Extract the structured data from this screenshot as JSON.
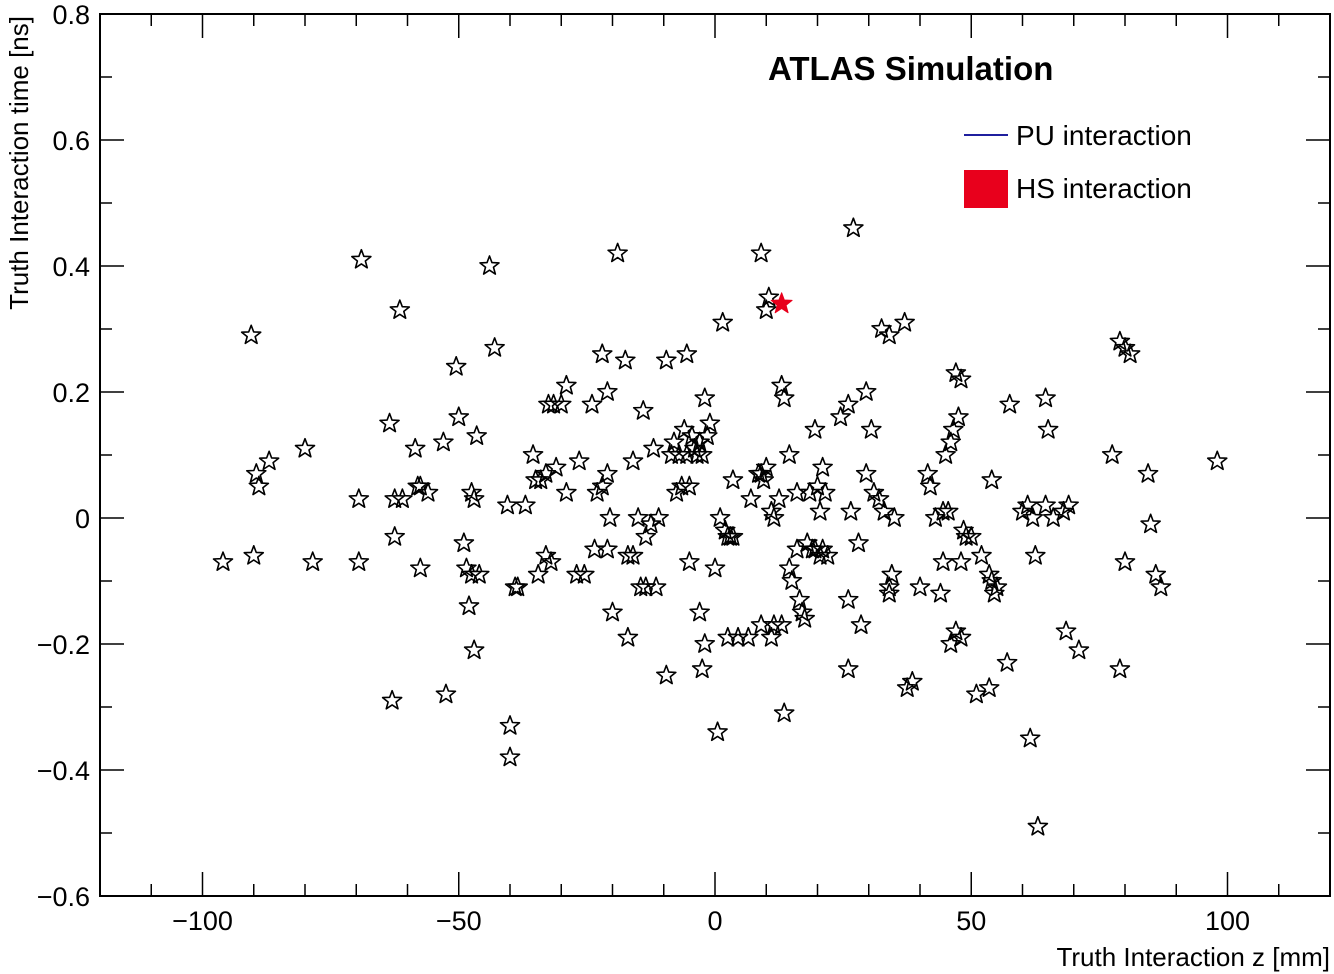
{
  "chart_data": {
    "type": "scatter",
    "title": "ATLAS Simulation",
    "xlabel": "Truth Interaction z [mm]",
    "ylabel": "Truth Interaction time [ns]",
    "xlim": [
      -120,
      120
    ],
    "ylim": [
      -0.6,
      0.8
    ],
    "x_ticks": [
      -100,
      -50,
      0,
      50,
      100
    ],
    "x_tick_labels": [
      "−100",
      "−50",
      "0",
      "50",
      "100"
    ],
    "y_ticks": [
      -0.6,
      -0.4,
      -0.2,
      0,
      0.2,
      0.4,
      0.6,
      0.8
    ],
    "y_tick_labels": [
      "−0.6",
      "−0.4",
      "−0.2",
      "0",
      "0.2",
      "0.4",
      "0.6",
      "0.8"
    ],
    "grid": false,
    "legend_position": "top-right",
    "legend": [
      {
        "label": "PU interaction",
        "color": "#1f1f9e",
        "symbol": "line"
      },
      {
        "label": "HS interaction",
        "color": "#e8001c",
        "symbol": "box"
      }
    ],
    "series": [
      {
        "name": "PU interaction",
        "marker": "open-star",
        "color": "#000000",
        "points": [
          [
            -96,
            -0.07
          ],
          [
            -90.5,
            0.29
          ],
          [
            -90,
            -0.06
          ],
          [
            -89.5,
            0.07
          ],
          [
            -89,
            0.05
          ],
          [
            -87,
            0.09
          ],
          [
            -80,
            0.11
          ],
          [
            -78.5,
            -0.07
          ],
          [
            -69,
            0.41
          ],
          [
            -69.5,
            0.03
          ],
          [
            -69.5,
            -0.07
          ],
          [
            -63.5,
            0.15
          ],
          [
            -63,
            -0.29
          ],
          [
            -62.5,
            0.03
          ],
          [
            -62.5,
            -0.03
          ],
          [
            -61.5,
            0.33
          ],
          [
            -61,
            0.03
          ],
          [
            -58.5,
            0.11
          ],
          [
            -58,
            0.05
          ],
          [
            -57.5,
            0.05
          ],
          [
            -57.5,
            -0.08
          ],
          [
            -56,
            0.04
          ],
          [
            -53,
            0.12
          ],
          [
            -52.5,
            -0.28
          ],
          [
            -50.5,
            0.24
          ],
          [
            -50,
            0.16
          ],
          [
            -49,
            -0.04
          ],
          [
            -48.5,
            -0.08
          ],
          [
            -48,
            -0.14
          ],
          [
            -47.5,
            0.04
          ],
          [
            -47.5,
            -0.09
          ],
          [
            -47,
            0.03
          ],
          [
            -47,
            -0.21
          ],
          [
            -46.5,
            0.13
          ],
          [
            -46,
            -0.09
          ],
          [
            -44,
            0.4
          ],
          [
            -43,
            0.27
          ],
          [
            -40.5,
            0.02
          ],
          [
            -40,
            -0.33
          ],
          [
            -40,
            -0.38
          ],
          [
            -39,
            -0.11
          ],
          [
            -38.5,
            -0.11
          ],
          [
            -37,
            0.02
          ],
          [
            -35.5,
            0.1
          ],
          [
            -35,
            0.06
          ],
          [
            -34.5,
            -0.09
          ],
          [
            -34,
            0.06
          ],
          [
            -33,
            0.07
          ],
          [
            -33,
            -0.06
          ],
          [
            -32.5,
            0.18
          ],
          [
            -32,
            -0.07
          ],
          [
            -31.5,
            0.18
          ],
          [
            -31,
            0.08
          ],
          [
            -30,
            0.18
          ],
          [
            -29,
            0.21
          ],
          [
            -29,
            0.04
          ],
          [
            -27,
            -0.09
          ],
          [
            -26.5,
            0.09
          ],
          [
            -25.5,
            -0.09
          ],
          [
            -24,
            0.18
          ],
          [
            -23.5,
            -0.05
          ],
          [
            -23,
            0.04
          ],
          [
            -22,
            0.26
          ],
          [
            -22,
            0.05
          ],
          [
            -21,
            0.2
          ],
          [
            -21,
            0.07
          ],
          [
            -21,
            -0.05
          ],
          [
            -20.5,
            0.0
          ],
          [
            -20,
            -0.15
          ],
          [
            -19,
            0.42
          ],
          [
            -17.5,
            0.25
          ],
          [
            -17,
            -0.06
          ],
          [
            -17,
            -0.19
          ],
          [
            -16,
            0.09
          ],
          [
            -16,
            -0.06
          ],
          [
            -15,
            0.0
          ],
          [
            -14.5,
            -0.11
          ],
          [
            -14,
            0.17
          ],
          [
            -13.5,
            -0.03
          ],
          [
            -13.5,
            -0.11
          ],
          [
            -12.5,
            -0.01
          ],
          [
            -12,
            0.11
          ],
          [
            -11.5,
            -0.11
          ],
          [
            -11,
            0.0
          ],
          [
            -9.5,
            0.25
          ],
          [
            -9.5,
            -0.25
          ],
          [
            -8.5,
            0.1
          ],
          [
            -8,
            0.12
          ],
          [
            -7.5,
            0.04
          ],
          [
            -7,
            0.1
          ],
          [
            -6.5,
            0.05
          ],
          [
            -6,
            0.14
          ],
          [
            -5.5,
            0.26
          ],
          [
            -5.5,
            0.1
          ],
          [
            -5,
            0.05
          ],
          [
            -5,
            -0.07
          ],
          [
            -4.5,
            0.13
          ],
          [
            -4,
            0.11
          ],
          [
            -3.5,
            0.1
          ],
          [
            -3,
            0.12
          ],
          [
            -3,
            -0.15
          ],
          [
            -2.5,
            0.1
          ],
          [
            -2.5,
            -0.24
          ],
          [
            -2,
            0.19
          ],
          [
            -2,
            -0.2
          ],
          [
            -1.5,
            0.13
          ],
          [
            -1,
            0.15
          ],
          [
            0,
            -0.08
          ],
          [
            0.5,
            -0.34
          ],
          [
            1,
            0.0
          ],
          [
            1.5,
            0.31
          ],
          [
            2,
            -0.02
          ],
          [
            2.5,
            -0.03
          ],
          [
            2.5,
            -0.19
          ],
          [
            3,
            -0.03
          ],
          [
            3.5,
            -0.03
          ],
          [
            3.5,
            0.06
          ],
          [
            4.5,
            -0.19
          ],
          [
            6.5,
            -0.19
          ],
          [
            7,
            0.03
          ],
          [
            8.5,
            0.07
          ],
          [
            9,
            0.07
          ],
          [
            9,
            0.42
          ],
          [
            9,
            -0.17
          ],
          [
            9.5,
            0.06
          ],
          [
            10,
            0.33
          ],
          [
            10,
            0.08
          ],
          [
            10.5,
            0.35
          ],
          [
            11,
            -0.19
          ],
          [
            11,
            0.01
          ],
          [
            11.5,
            -0.17
          ],
          [
            11.5,
            0.0
          ],
          [
            12.5,
            0.03
          ],
          [
            13,
            0.21
          ],
          [
            13,
            -0.17
          ],
          [
            13.5,
            0.19
          ],
          [
            13.5,
            -0.31
          ],
          [
            14.5,
            0.1
          ],
          [
            14.5,
            -0.08
          ],
          [
            15,
            -0.1
          ],
          [
            16,
            -0.05
          ],
          [
            16,
            0.04
          ],
          [
            16.5,
            -0.13
          ],
          [
            17,
            -0.15
          ],
          [
            17.5,
            -0.16
          ],
          [
            18,
            -0.04
          ],
          [
            18.5,
            0.04
          ],
          [
            19,
            -0.05
          ],
          [
            19.5,
            0.14
          ],
          [
            19.5,
            -0.05
          ],
          [
            20,
            0.05
          ],
          [
            20.5,
            -0.06
          ],
          [
            20.5,
            0.01
          ],
          [
            21,
            0.08
          ],
          [
            21,
            -0.05
          ],
          [
            21.5,
            0.04
          ],
          [
            22,
            -0.06
          ],
          [
            24.5,
            0.16
          ],
          [
            26,
            0.18
          ],
          [
            26,
            -0.13
          ],
          [
            26,
            -0.24
          ],
          [
            26.5,
            0.01
          ],
          [
            27,
            0.46
          ],
          [
            28,
            -0.04
          ],
          [
            28.5,
            -0.17
          ],
          [
            29.5,
            0.07
          ],
          [
            29.5,
            0.2
          ],
          [
            30.5,
            0.14
          ],
          [
            31,
            0.04
          ],
          [
            32,
            0.03
          ],
          [
            32.5,
            0.3
          ],
          [
            33,
            0.01
          ],
          [
            34,
            0.29
          ],
          [
            34.5,
            -0.09
          ],
          [
            34,
            -0.11
          ],
          [
            34,
            -0.12
          ],
          [
            35,
            0.0
          ],
          [
            37,
            0.31
          ],
          [
            37.5,
            -0.27
          ],
          [
            38.5,
            -0.26
          ],
          [
            40,
            -0.11
          ],
          [
            41.5,
            0.07
          ],
          [
            42,
            0.05
          ],
          [
            43,
            0.0
          ],
          [
            44,
            -0.12
          ],
          [
            44.5,
            0.01
          ],
          [
            44.5,
            -0.07
          ],
          [
            45,
            0.1
          ],
          [
            45.5,
            0.01
          ],
          [
            46,
            0.12
          ],
          [
            46,
            -0.2
          ],
          [
            46.5,
            0.14
          ],
          [
            47,
            -0.18
          ],
          [
            47,
            0.23
          ],
          [
            47.5,
            0.16
          ],
          [
            48,
            0.22
          ],
          [
            48,
            -0.19
          ],
          [
            48,
            -0.07
          ],
          [
            48.5,
            -0.02
          ],
          [
            49,
            -0.03
          ],
          [
            50,
            -0.03
          ],
          [
            51,
            -0.28
          ],
          [
            52,
            -0.06
          ],
          [
            53.5,
            -0.09
          ],
          [
            53.5,
            -0.27
          ],
          [
            54,
            -0.1
          ],
          [
            54,
            0.06
          ],
          [
            54.5,
            -0.12
          ],
          [
            55,
            -0.11
          ],
          [
            57,
            -0.23
          ],
          [
            57.5,
            0.18
          ],
          [
            60,
            0.01
          ],
          [
            61,
            0.02
          ],
          [
            61.5,
            -0.35
          ],
          [
            62,
            0.0
          ],
          [
            62.5,
            -0.06
          ],
          [
            63,
            -0.49
          ],
          [
            64.5,
            0.02
          ],
          [
            64.5,
            0.19
          ],
          [
            65,
            0.14
          ],
          [
            66,
            0.0
          ],
          [
            68,
            0.01
          ],
          [
            68.5,
            -0.18
          ],
          [
            69,
            0.02
          ],
          [
            71,
            -0.21
          ],
          [
            77.5,
            0.1
          ],
          [
            79,
            0.28
          ],
          [
            79,
            -0.24
          ],
          [
            80,
            0.27
          ],
          [
            80,
            -0.07
          ],
          [
            81,
            0.26
          ],
          [
            84.5,
            0.07
          ],
          [
            85,
            -0.01
          ],
          [
            86,
            -0.09
          ],
          [
            87,
            -0.11
          ],
          [
            98,
            0.09
          ]
        ]
      },
      {
        "name": "HS interaction",
        "marker": "filled-star",
        "color": "#e8001c",
        "points": [
          [
            13,
            0.34
          ]
        ]
      }
    ]
  }
}
